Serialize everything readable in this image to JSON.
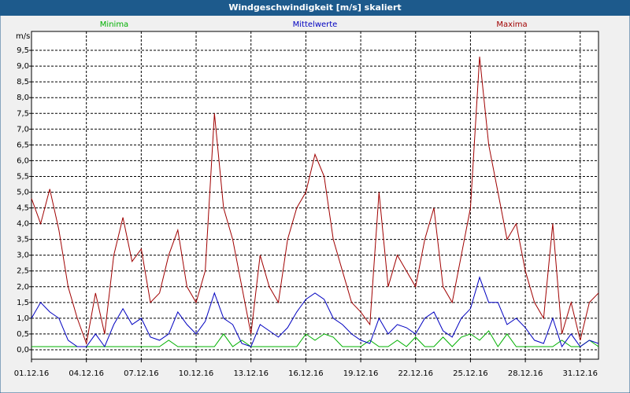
{
  "chart_data": {
    "type": "line",
    "title": "Windgeschwindigkeit [m/s] skaliert",
    "y_label": "m/s",
    "x": [
      0,
      0.5,
      1,
      1.5,
      2,
      2.5,
      3,
      3.5,
      4,
      4.5,
      5,
      5.5,
      6,
      6.5,
      7,
      7.5,
      8,
      8.5,
      9,
      9.5,
      10,
      10.5,
      11,
      11.5,
      12,
      12.5,
      13,
      13.5,
      14,
      14.5,
      15,
      15.5,
      16,
      16.5,
      17,
      17.5,
      18,
      18.5,
      19,
      19.5,
      20,
      20.5,
      21,
      21.5,
      22,
      22.5,
      23,
      23.5,
      24,
      24.5,
      25,
      25.5,
      26,
      26.5,
      27,
      27.5,
      28,
      28.5,
      29,
      29.5,
      30,
      30.5,
      31
    ],
    "series": [
      {
        "name": "Minima",
        "color": "#00b000",
        "values": [
          0.1,
          0.1,
          0.1,
          0.1,
          0.1,
          0.1,
          0.1,
          0.1,
          0.1,
          0.1,
          0.1,
          0.1,
          0.1,
          0.1,
          0.1,
          0.3,
          0.1,
          0.1,
          0.1,
          0.1,
          0.1,
          0.5,
          0.1,
          0.3,
          0.1,
          0.1,
          0.1,
          0.1,
          0.1,
          0.1,
          0.5,
          0.3,
          0.5,
          0.4,
          0.1,
          0.1,
          0.1,
          0.3,
          0.1,
          0.1,
          0.3,
          0.1,
          0.4,
          0.1,
          0.1,
          0.4,
          0.1,
          0.4,
          0.5,
          0.3,
          0.6,
          0.1,
          0.5,
          0.1,
          0.1,
          0.1,
          0.1,
          0.1,
          0.3,
          0.1,
          0.1,
          0.3,
          0.1
        ]
      },
      {
        "name": "Mittelwerte",
        "color": "#0000c0",
        "values": [
          1.0,
          1.5,
          1.2,
          1.0,
          0.3,
          0.1,
          0.1,
          0.5,
          0.1,
          0.8,
          1.3,
          0.8,
          1.0,
          0.4,
          0.3,
          0.5,
          1.2,
          0.8,
          0.5,
          0.9,
          1.8,
          1.0,
          0.8,
          0.2,
          0.1,
          0.8,
          0.6,
          0.4,
          0.7,
          1.2,
          1.6,
          1.8,
          1.6,
          1.0,
          0.8,
          0.5,
          0.3,
          0.2,
          1.0,
          0.5,
          0.8,
          0.7,
          0.5,
          1.0,
          1.2,
          0.6,
          0.4,
          1.0,
          1.3,
          2.3,
          1.5,
          1.5,
          0.8,
          1.0,
          0.7,
          0.3,
          0.2,
          1.0,
          0.1,
          0.5,
          0.1,
          0.3,
          0.2
        ]
      },
      {
        "name": "Maxima",
        "color": "#a00000",
        "values": [
          4.8,
          4.0,
          5.1,
          3.8,
          2.0,
          1.0,
          0.2,
          1.8,
          0.5,
          3.0,
          4.2,
          2.8,
          3.2,
          1.5,
          1.8,
          3.0,
          3.8,
          2.0,
          1.5,
          2.5,
          7.5,
          4.5,
          3.5,
          2.0,
          0.5,
          3.0,
          2.0,
          1.5,
          3.5,
          4.5,
          5.0,
          6.2,
          5.5,
          3.5,
          2.5,
          1.5,
          1.2,
          0.8,
          5.0,
          2.0,
          3.0,
          2.5,
          2.0,
          3.5,
          4.5,
          2.0,
          1.5,
          3.0,
          4.5,
          9.3,
          6.5,
          5.0,
          3.5,
          4.0,
          2.5,
          1.5,
          1.0,
          4.0,
          0.5,
          1.5,
          0.3,
          1.5,
          1.8
        ]
      }
    ],
    "xlim": [
      0,
      31
    ],
    "xticks": [
      {
        "value": 0,
        "label": "01.12.16"
      },
      {
        "value": 3,
        "label": "04.12.16"
      },
      {
        "value": 6,
        "label": "07.12.16"
      },
      {
        "value": 9,
        "label": "10.12.16"
      },
      {
        "value": 12,
        "label": "13.12.16"
      },
      {
        "value": 15,
        "label": "16.12.16"
      },
      {
        "value": 18,
        "label": "19.12.16"
      },
      {
        "value": 21,
        "label": "22.12.16"
      },
      {
        "value": 24,
        "label": "25.12.16"
      },
      {
        "value": 27,
        "label": "28.12.16"
      },
      {
        "value": 30,
        "label": "31.12.16"
      }
    ],
    "ylim": [
      -0.3,
      10.1
    ],
    "yticks": [
      {
        "value": 0,
        "label": "0,0"
      },
      {
        "value": 0.5,
        "label": "0,5"
      },
      {
        "value": 1,
        "label": "1,0"
      },
      {
        "value": 1.5,
        "label": "1,5"
      },
      {
        "value": 2,
        "label": "2,0"
      },
      {
        "value": 2.5,
        "label": "2,5"
      },
      {
        "value": 3,
        "label": "3,0"
      },
      {
        "value": 3.5,
        "label": "3,5"
      },
      {
        "value": 4,
        "label": "4,0"
      },
      {
        "value": 4.5,
        "label": "4,5"
      },
      {
        "value": 5,
        "label": "5,0"
      },
      {
        "value": 5.5,
        "label": "5,5"
      },
      {
        "value": 6,
        "label": "6,0"
      },
      {
        "value": 6.5,
        "label": "6,5"
      },
      {
        "value": 7,
        "label": "7,0"
      },
      {
        "value": 7.5,
        "label": "7,5"
      },
      {
        "value": 8,
        "label": "8,0"
      },
      {
        "value": 8.5,
        "label": "8,5"
      },
      {
        "value": 9,
        "label": "9,0"
      },
      {
        "value": 9.5,
        "label": "9,5"
      }
    ],
    "grid": true
  }
}
